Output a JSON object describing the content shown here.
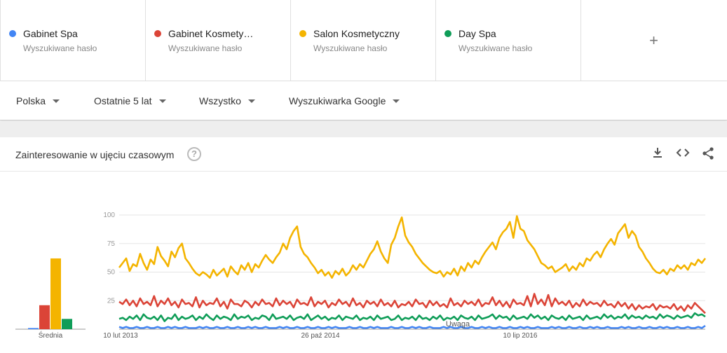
{
  "terms": [
    {
      "name": "Gabinet Spa",
      "sub": "Wyszukiwane hasło",
      "color": "#4285f4"
    },
    {
      "name": "Gabinet Kosmetyczny",
      "sub": "Wyszukiwane hasło",
      "color": "#db4437"
    },
    {
      "name": "Salon Kosmetyczny",
      "sub": "Wyszukiwane hasło",
      "color": "#f4b400"
    },
    {
      "name": "Day Spa",
      "sub": "Wyszukiwane hasło",
      "color": "#0f9d58"
    }
  ],
  "add_symbol": "+",
  "filters": {
    "region": "Polska",
    "period": "Ostatnie 5 lat",
    "category": "Wszystko",
    "source": "Wyszukiwarka Google"
  },
  "card": {
    "title": "Zainteresowanie w ujęciu czasowym",
    "help_symbol": "?",
    "icons": [
      "download-icon",
      "embed-icon",
      "share-icon"
    ]
  },
  "chart_data": [
    {
      "type": "bar",
      "categories": [
        "Gabinet Spa",
        "Gabinet Kosmetyczny",
        "Salon Kosmetyczny",
        "Day Spa"
      ],
      "values": [
        1,
        21,
        62,
        9
      ],
      "xlabel": "Średnia",
      "ylim": [
        0,
        100
      ],
      "colors": [
        "#4285f4",
        "#db4437",
        "#f4b400",
        "#0f9d58"
      ]
    },
    {
      "type": "line",
      "x_ticks": [
        "10 lut 2013",
        "26 paź 2014",
        "10 lip 2016"
      ],
      "y_ticks": [
        "100",
        "75",
        "50",
        "25"
      ],
      "ylim": [
        0,
        100
      ],
      "grid": true,
      "annotation": "Uwaga",
      "series": [
        {
          "name": "Salon Kosmetyczny",
          "color": "#f4b400",
          "values": [
            54,
            58,
            62,
            51,
            57,
            55,
            66,
            58,
            52,
            61,
            57,
            72,
            64,
            60,
            55,
            68,
            63,
            71,
            75,
            62,
            58,
            53,
            49,
            47,
            50,
            48,
            45,
            52,
            47,
            50,
            53,
            46,
            55,
            51,
            48,
            56,
            52,
            58,
            50,
            57,
            54,
            60,
            65,
            61,
            58,
            63,
            67,
            75,
            70,
            80,
            86,
            90,
            72,
            66,
            63,
            58,
            54,
            49,
            52,
            47,
            50,
            45,
            51,
            48,
            53,
            47,
            50,
            56,
            52,
            57,
            54,
            60,
            66,
            70,
            77,
            68,
            62,
            58,
            74,
            80,
            90,
            98,
            82,
            76,
            72,
            66,
            62,
            58,
            55,
            52,
            50,
            49,
            51,
            46,
            50,
            48,
            53,
            47,
            55,
            51,
            58,
            54,
            60,
            57,
            63,
            68,
            72,
            76,
            70,
            80,
            85,
            88,
            94,
            80,
            99,
            88,
            86,
            78,
            74,
            70,
            64,
            58,
            56,
            53,
            55,
            50,
            52,
            54,
            57,
            51,
            55,
            52,
            58,
            55,
            62,
            60,
            65,
            68,
            63,
            70,
            75,
            79,
            74,
            84,
            88,
            92,
            80,
            86,
            82,
            72,
            68,
            62,
            58,
            53,
            50,
            49,
            52,
            48,
            53,
            51,
            56,
            53,
            56,
            52,
            58,
            56,
            61,
            58,
            62
          ]
        },
        {
          "name": "Gabinet Kosmetyczny",
          "color": "#db4437",
          "values": [
            24,
            22,
            26,
            21,
            25,
            20,
            27,
            22,
            24,
            21,
            29,
            20,
            25,
            22,
            27,
            21,
            24,
            19,
            26,
            22,
            23,
            20,
            28,
            19,
            25,
            21,
            23,
            22,
            27,
            20,
            24,
            18,
            26,
            22,
            22,
            20,
            25,
            23,
            19,
            24,
            21,
            26,
            22,
            23,
            20,
            27,
            21,
            25,
            22,
            24,
            19,
            26,
            22,
            23,
            21,
            28,
            20,
            24,
            22,
            25,
            19,
            23,
            21,
            26,
            22,
            24,
            20,
            27,
            21,
            23,
            19,
            25,
            22,
            24,
            20,
            26,
            21,
            23,
            20,
            25,
            19,
            22,
            21,
            24,
            20,
            26,
            22,
            23,
            19,
            25,
            21,
            24,
            20,
            22,
            19,
            27,
            21,
            23,
            20,
            25,
            22,
            24,
            21,
            26,
            20,
            23,
            22,
            28,
            21,
            25,
            20,
            24,
            19,
            26,
            22,
            23,
            21,
            29,
            20,
            31,
            22,
            26,
            21,
            30,
            20,
            27,
            22,
            24,
            21,
            25,
            19,
            23,
            20,
            26,
            21,
            24,
            22,
            23,
            20,
            25,
            21,
            22,
            19,
            24,
            20,
            23,
            18,
            22,
            17,
            21,
            18,
            20,
            19,
            22,
            17,
            21,
            19,
            20,
            18,
            22,
            17,
            20,
            16,
            21,
            18,
            23,
            20,
            17,
            14
          ]
        },
        {
          "name": "Day Spa",
          "color": "#0f9d58",
          "values": [
            9,
            10,
            8,
            11,
            9,
            12,
            8,
            13,
            10,
            9,
            11,
            8,
            12,
            7,
            10,
            9,
            13,
            8,
            11,
            9,
            10,
            12,
            8,
            11,
            9,
            13,
            10,
            8,
            12,
            9,
            11,
            10,
            8,
            13,
            9,
            11,
            10,
            12,
            8,
            10,
            9,
            12,
            11,
            8,
            13,
            9,
            10,
            11,
            9,
            12,
            8,
            10,
            11,
            9,
            13,
            8,
            10,
            12,
            9,
            11,
            8,
            10,
            9,
            12,
            8,
            11,
            10,
            9,
            12,
            8,
            10,
            9,
            11,
            8,
            12,
            9,
            10,
            11,
            8,
            9,
            12,
            8,
            10,
            9,
            11,
            8,
            12,
            9,
            10,
            8,
            11,
            9,
            12,
            8,
            10,
            9,
            11,
            8,
            12,
            10,
            9,
            11,
            8,
            12,
            9,
            10,
            11,
            13,
            9,
            12,
            10,
            11,
            8,
            12,
            9,
            10,
            11,
            9,
            13,
            10,
            12,
            9,
            11,
            8,
            12,
            10,
            9,
            11,
            8,
            12,
            9,
            10,
            11,
            8,
            12,
            9,
            10,
            11,
            9,
            13,
            10,
            12,
            9,
            11,
            10,
            13,
            9,
            12,
            10,
            11,
            9,
            12,
            10,
            11,
            9,
            13,
            10,
            12,
            11,
            9,
            12,
            10,
            11,
            12,
            10,
            14,
            12,
            13,
            11
          ]
        },
        {
          "name": "Gabinet Spa",
          "color": "#4285f4",
          "values": [
            2,
            1,
            2,
            1,
            1,
            2,
            1,
            1,
            2,
            1,
            1,
            2,
            1,
            1,
            2,
            1,
            2,
            1,
            1,
            2,
            1,
            1,
            1,
            2,
            1,
            2,
            1,
            1,
            2,
            1,
            1,
            2,
            1,
            1,
            2,
            1,
            1,
            2,
            1,
            2,
            1,
            1,
            2,
            1,
            1,
            1,
            2,
            1,
            2,
            1,
            1,
            2,
            1,
            1,
            2,
            1,
            1,
            2,
            1,
            1,
            2,
            1,
            2,
            1,
            1,
            1,
            2,
            1,
            1,
            2,
            1,
            1,
            2,
            1,
            2,
            1,
            1,
            1,
            2,
            1,
            1,
            2,
            1,
            1,
            2,
            1,
            2,
            1,
            1,
            2,
            1,
            1,
            1,
            2,
            1,
            2,
            1,
            1,
            2,
            1,
            1,
            2,
            1,
            1,
            2,
            1,
            2,
            1,
            1,
            2,
            1,
            1,
            2,
            1,
            1,
            2,
            1,
            2,
            1,
            1,
            2,
            1,
            1,
            1,
            2,
            1,
            2,
            1,
            1,
            2,
            1,
            1,
            2,
            1,
            1,
            2,
            1,
            2,
            1,
            1,
            2,
            1,
            1,
            1,
            2,
            1,
            2,
            1,
            1,
            2,
            1,
            1,
            2,
            1,
            1,
            2,
            1,
            2,
            1,
            1,
            2,
            1,
            1,
            2,
            1,
            1,
            2,
            1,
            3
          ]
        }
      ]
    }
  ]
}
